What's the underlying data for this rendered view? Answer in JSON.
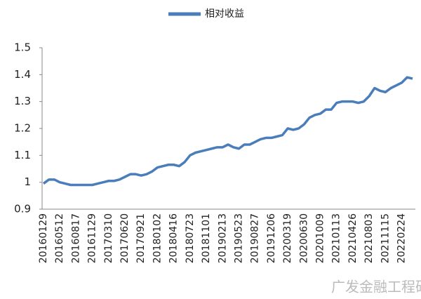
{
  "chart_data": {
    "type": "line",
    "categories": [
      "20160129",
      null,
      null,
      "20160512",
      null,
      null,
      "20160817",
      null,
      null,
      "20161129",
      null,
      null,
      "20170310",
      null,
      null,
      "20170620",
      null,
      null,
      "20170921",
      null,
      null,
      "20180102",
      null,
      null,
      "20180416",
      null,
      null,
      "20180723",
      null,
      null,
      "20181101",
      null,
      null,
      "20190213",
      null,
      null,
      "20190523",
      null,
      null,
      "20190827",
      null,
      null,
      "20191206",
      null,
      null,
      "20200319",
      null,
      null,
      "20200630",
      null,
      null,
      "20201009",
      null,
      null,
      "20210113",
      null,
      null,
      "20210426",
      null,
      null,
      "20210803",
      null,
      null,
      "20211115",
      null,
      null,
      "20220224",
      null,
      null
    ],
    "series": [
      {
        "name": "相对收益",
        "color": "#4a7ebb",
        "values": [
          0.995,
          1.01,
          1.01,
          1.0,
          0.995,
          0.99,
          0.99,
          0.99,
          0.99,
          0.99,
          0.995,
          1.0,
          1.005,
          1.005,
          1.01,
          1.02,
          1.03,
          1.03,
          1.025,
          1.03,
          1.04,
          1.055,
          1.06,
          1.065,
          1.065,
          1.06,
          1.075,
          1.1,
          1.11,
          1.115,
          1.12,
          1.125,
          1.13,
          1.13,
          1.14,
          1.13,
          1.125,
          1.14,
          1.14,
          1.15,
          1.16,
          1.165,
          1.165,
          1.17,
          1.175,
          1.2,
          1.195,
          1.2,
          1.215,
          1.24,
          1.25,
          1.255,
          1.27,
          1.27,
          1.295,
          1.3,
          1.3,
          1.3,
          1.295,
          1.3,
          1.32,
          1.35,
          1.34,
          1.335,
          1.35,
          1.36,
          1.37,
          1.39,
          1.385
        ]
      }
    ],
    "ylim": [
      0.9,
      1.5
    ],
    "yticks": [
      0.9,
      1,
      1.1,
      1.2,
      1.3,
      1.4,
      1.5
    ],
    "legend": "top",
    "watermark": "广发金融工程研究"
  }
}
